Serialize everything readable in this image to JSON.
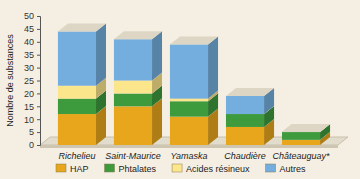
{
  "chart_data": {
    "type": "bar",
    "stacked": true,
    "y_label": "Nombre de substances",
    "categories": [
      "Richelieu",
      "Saint-Maurice",
      "Yamaska",
      "Chaudière",
      "Châteauguay*"
    ],
    "series": [
      {
        "name": "HAP",
        "color": "#e8a61c",
        "values": [
          12,
          15,
          11,
          7,
          2
        ]
      },
      {
        "name": "Phtalates",
        "color": "#3d9a3d",
        "values": [
          6,
          5,
          6,
          5,
          3
        ]
      },
      {
        "name": "Acides résineux",
        "color": "#fbe68c",
        "values": [
          5,
          5,
          1,
          0,
          0
        ]
      },
      {
        "name": "Autres",
        "color": "#74aede",
        "values": [
          21,
          16,
          21,
          7,
          0
        ]
      }
    ],
    "ylim": [
      0,
      50
    ],
    "yticks": [
      0,
      5,
      10,
      15,
      20,
      25,
      30,
      35,
      40,
      45,
      50
    ],
    "legend": "bottom"
  }
}
